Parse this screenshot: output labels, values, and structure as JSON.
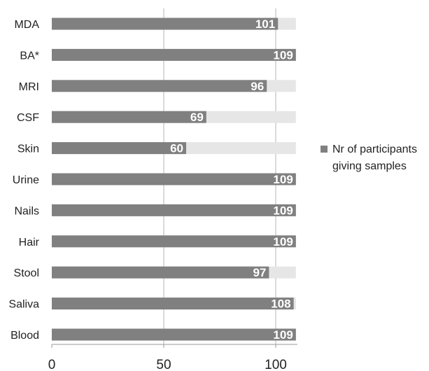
{
  "chart_data": {
    "type": "bar",
    "orientation": "horizontal",
    "categories": [
      "MDA",
      "BA*",
      "MRI",
      "CSF",
      "Skin",
      "Urine",
      "Nails",
      "Hair",
      "Stool",
      "Saliva",
      "Blood"
    ],
    "series": [
      {
        "name": "Nr of participants giving samples",
        "values": [
          101,
          109,
          96,
          69,
          60,
          109,
          109,
          109,
          97,
          108,
          109
        ],
        "color": "#808080"
      }
    ],
    "total": 109,
    "background_bar_color": "#e6e6e6",
    "xticks": [
      "0",
      "50",
      "100"
    ],
    "xlim": [
      0,
      109
    ],
    "grid": true,
    "legend": {
      "position": "right",
      "lines": [
        "Nr of participants",
        "giving samples"
      ]
    },
    "title": "",
    "xlabel": "",
    "ylabel": ""
  }
}
